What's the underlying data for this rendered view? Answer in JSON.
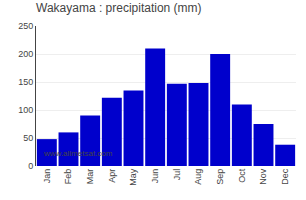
{
  "chart_data": {
    "type": "bar",
    "title": "Wakayama : precipitation (mm)",
    "categories": [
      "Jan",
      "Feb",
      "Mar",
      "Apr",
      "May",
      "Jun",
      "Jul",
      "Aug",
      "Sep",
      "Oct",
      "Nov",
      "Dec"
    ],
    "values": [
      48,
      60,
      90,
      122,
      135,
      210,
      147,
      148,
      200,
      110,
      75,
      38
    ],
    "color": "#0000CC",
    "ylim": [
      0,
      250
    ],
    "yticks": [
      0,
      50,
      100,
      150,
      200,
      250
    ],
    "grid": true,
    "annotations": [
      "www.allmetsat.com"
    ]
  }
}
